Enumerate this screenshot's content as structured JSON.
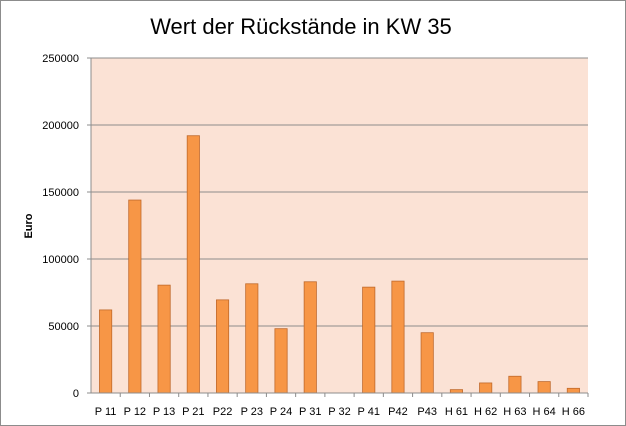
{
  "chart_data": {
    "type": "bar",
    "title": "Wert der Rückstände in KW 35",
    "xlabel": "",
    "ylabel": "Euro",
    "ylim": [
      0,
      250000
    ],
    "yticks": [
      0,
      50000,
      100000,
      150000,
      200000,
      250000
    ],
    "ytick_labels": [
      "0",
      "50000",
      "100000",
      "150000",
      "200000",
      "250000"
    ],
    "grid": true,
    "legend": "none",
    "categories": [
      "P 11",
      "P 12",
      "P 13",
      "P 21",
      "P22",
      "P 23",
      "P 24",
      "P 31",
      "P 32",
      "P 41",
      "P42",
      "P43",
      "H 61",
      "H 62",
      "H 63",
      "H 64",
      "H 66"
    ],
    "values": [
      62000,
      144000,
      80500,
      192000,
      69500,
      81500,
      48000,
      83000,
      0,
      79000,
      83500,
      45000,
      2500,
      7500,
      12500,
      8500,
      3500
    ],
    "colors": {
      "bar_fill": "#F79646",
      "bar_stroke": "#C0692B",
      "plot_background": "#FBE2D5",
      "gridline": "#8C8C8C",
      "frame_border": "#8C8C8C"
    }
  }
}
